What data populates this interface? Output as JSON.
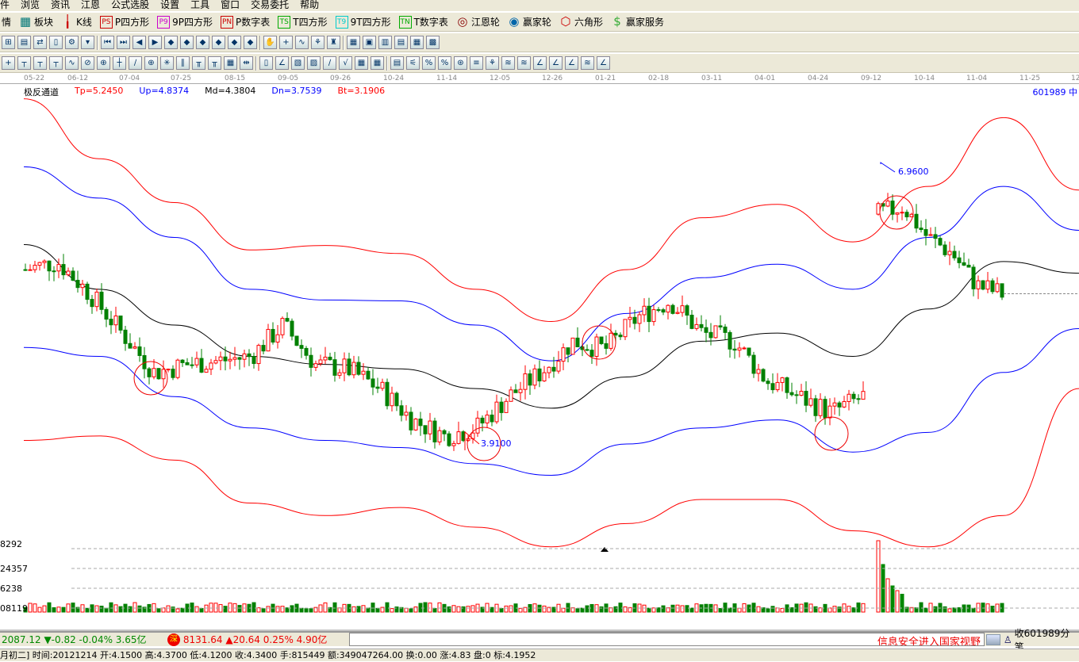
{
  "menu": [
    "件",
    "浏览",
    "资讯",
    "江恩",
    "公式选股",
    "设置",
    "工具",
    "窗口",
    "交易委托",
    "帮助"
  ],
  "toolbar1": [
    {
      "icon": "",
      "label": "情"
    },
    {
      "icon": "block-icon",
      "label": "板块"
    },
    {
      "icon": "kline-icon",
      "label": "K线"
    },
    {
      "icon": "PS",
      "label": "P四方形",
      "color": "#c00"
    },
    {
      "icon": "P9",
      "label": "9P四方形",
      "color": "#c0c"
    },
    {
      "icon": "PN",
      "label": "P数字表",
      "color": "#c00"
    },
    {
      "icon": "TS",
      "label": "T四方形",
      "color": "#0a0"
    },
    {
      "icon": "T9",
      "label": "9T四方形",
      "color": "#0cc"
    },
    {
      "icon": "TN",
      "label": "T数字表",
      "color": "#0a0"
    },
    {
      "icon": "gann-wheel-icon",
      "label": "江恩轮"
    },
    {
      "icon": "winner-wheel-icon",
      "label": "赢家轮"
    },
    {
      "icon": "hexagon-icon",
      "label": "六角形"
    },
    {
      "icon": "dollar-icon",
      "label": "赢家服务"
    }
  ],
  "dates": [
    "05-22",
    "06-12",
    "07-04",
    "07-25",
    "08-15",
    "09-05",
    "09-26",
    "10-24",
    "11-14",
    "12-05",
    "12-26",
    "01-21",
    "02-18",
    "03-11",
    "04-01",
    "04-24",
    "09-12",
    "10-14",
    "11-04",
    "11-25",
    "12"
  ],
  "indicator": {
    "name": "极反通道",
    "tp": "Tp=5.2450",
    "up": "Up=4.8374",
    "md": "Md=4.3804",
    "dn": "Dn=3.7539",
    "bt": "Bt=3.1906"
  },
  "stock_code": "601989 中",
  "annotations": {
    "high": "6.9600",
    "low": "3.9100"
  },
  "volume_axis": [
    "8292",
    "24357",
    "6238",
    "08119"
  ],
  "colors": {
    "up": "#ff0000",
    "down": "#008000",
    "upper": "#ff0000",
    "band": "#0000ff",
    "mid": "#000000"
  },
  "chart_data": {
    "type": "candlestick",
    "channel": {
      "upper_red": [
        7.77,
        7.1,
        6.61,
        6.08,
        6.13,
        6.04,
        5.64,
        5.28,
        5.86,
        6.44,
        6.59,
        6.17,
        6.79,
        7.56,
        6.75
      ],
      "upper_blue": [
        7.01,
        6.66,
        6.22,
        5.64,
        5.52,
        5.51,
        5.24,
        4.84,
        5.37,
        5.77,
        5.92,
        5.64,
        6.22,
        6.79,
        6.3
      ],
      "middle": [
        6.14,
        5.64,
        5.24,
        4.89,
        4.8,
        4.75,
        4.53,
        4.31,
        4.66,
        5.06,
        5.15,
        4.89,
        5.42,
        5.95,
        5.82
      ],
      "lower_blue": [
        4.99,
        4.89,
        4.44,
        4.09,
        3.95,
        3.87,
        3.69,
        3.56,
        3.91,
        4.09,
        4.18,
        3.82,
        4.04,
        4.71,
        5.2
      ],
      "lower_red": [
        3.95,
        4.0,
        3.73,
        3.25,
        3.11,
        3.2,
        2.98,
        2.76,
        3.02,
        3.29,
        3.29,
        2.94,
        2.76,
        3.11,
        4.53
      ]
    },
    "close_path": [
      5.86,
      5.95,
      5.59,
      5.15,
      4.71,
      4.8,
      4.84,
      4.89,
      5.24,
      4.8,
      4.75,
      4.53,
      4.18,
      4.0,
      4.09,
      4.44,
      4.71,
      5.06,
      4.97,
      5.33,
      5.51,
      5.15,
      5.06,
      4.62,
      4.44,
      4.26,
      4.44
    ],
    "close_path_recent": [
      6.48,
      6.57,
      6.22,
      6.04,
      5.68,
      5.59
    ],
    "last_close": 5.59
  },
  "index_bar": {
    "sh": "2087.12 ▼-0.82 -0.04% 3.65亿",
    "sz_badge": "深",
    "sz": "8131.64 ▲20.64 0.25% 4.90亿",
    "ticker": "信息安全进入国家视野",
    "trades": "收601989分笔"
  },
  "status": "月初二] 时间:20121214 开:4.1500 高:4.3700 低:4.1200 收:4.3400 手:815449 额:349047264.00 换:0.00 涨:4.83 盘:0 标:4.1952"
}
